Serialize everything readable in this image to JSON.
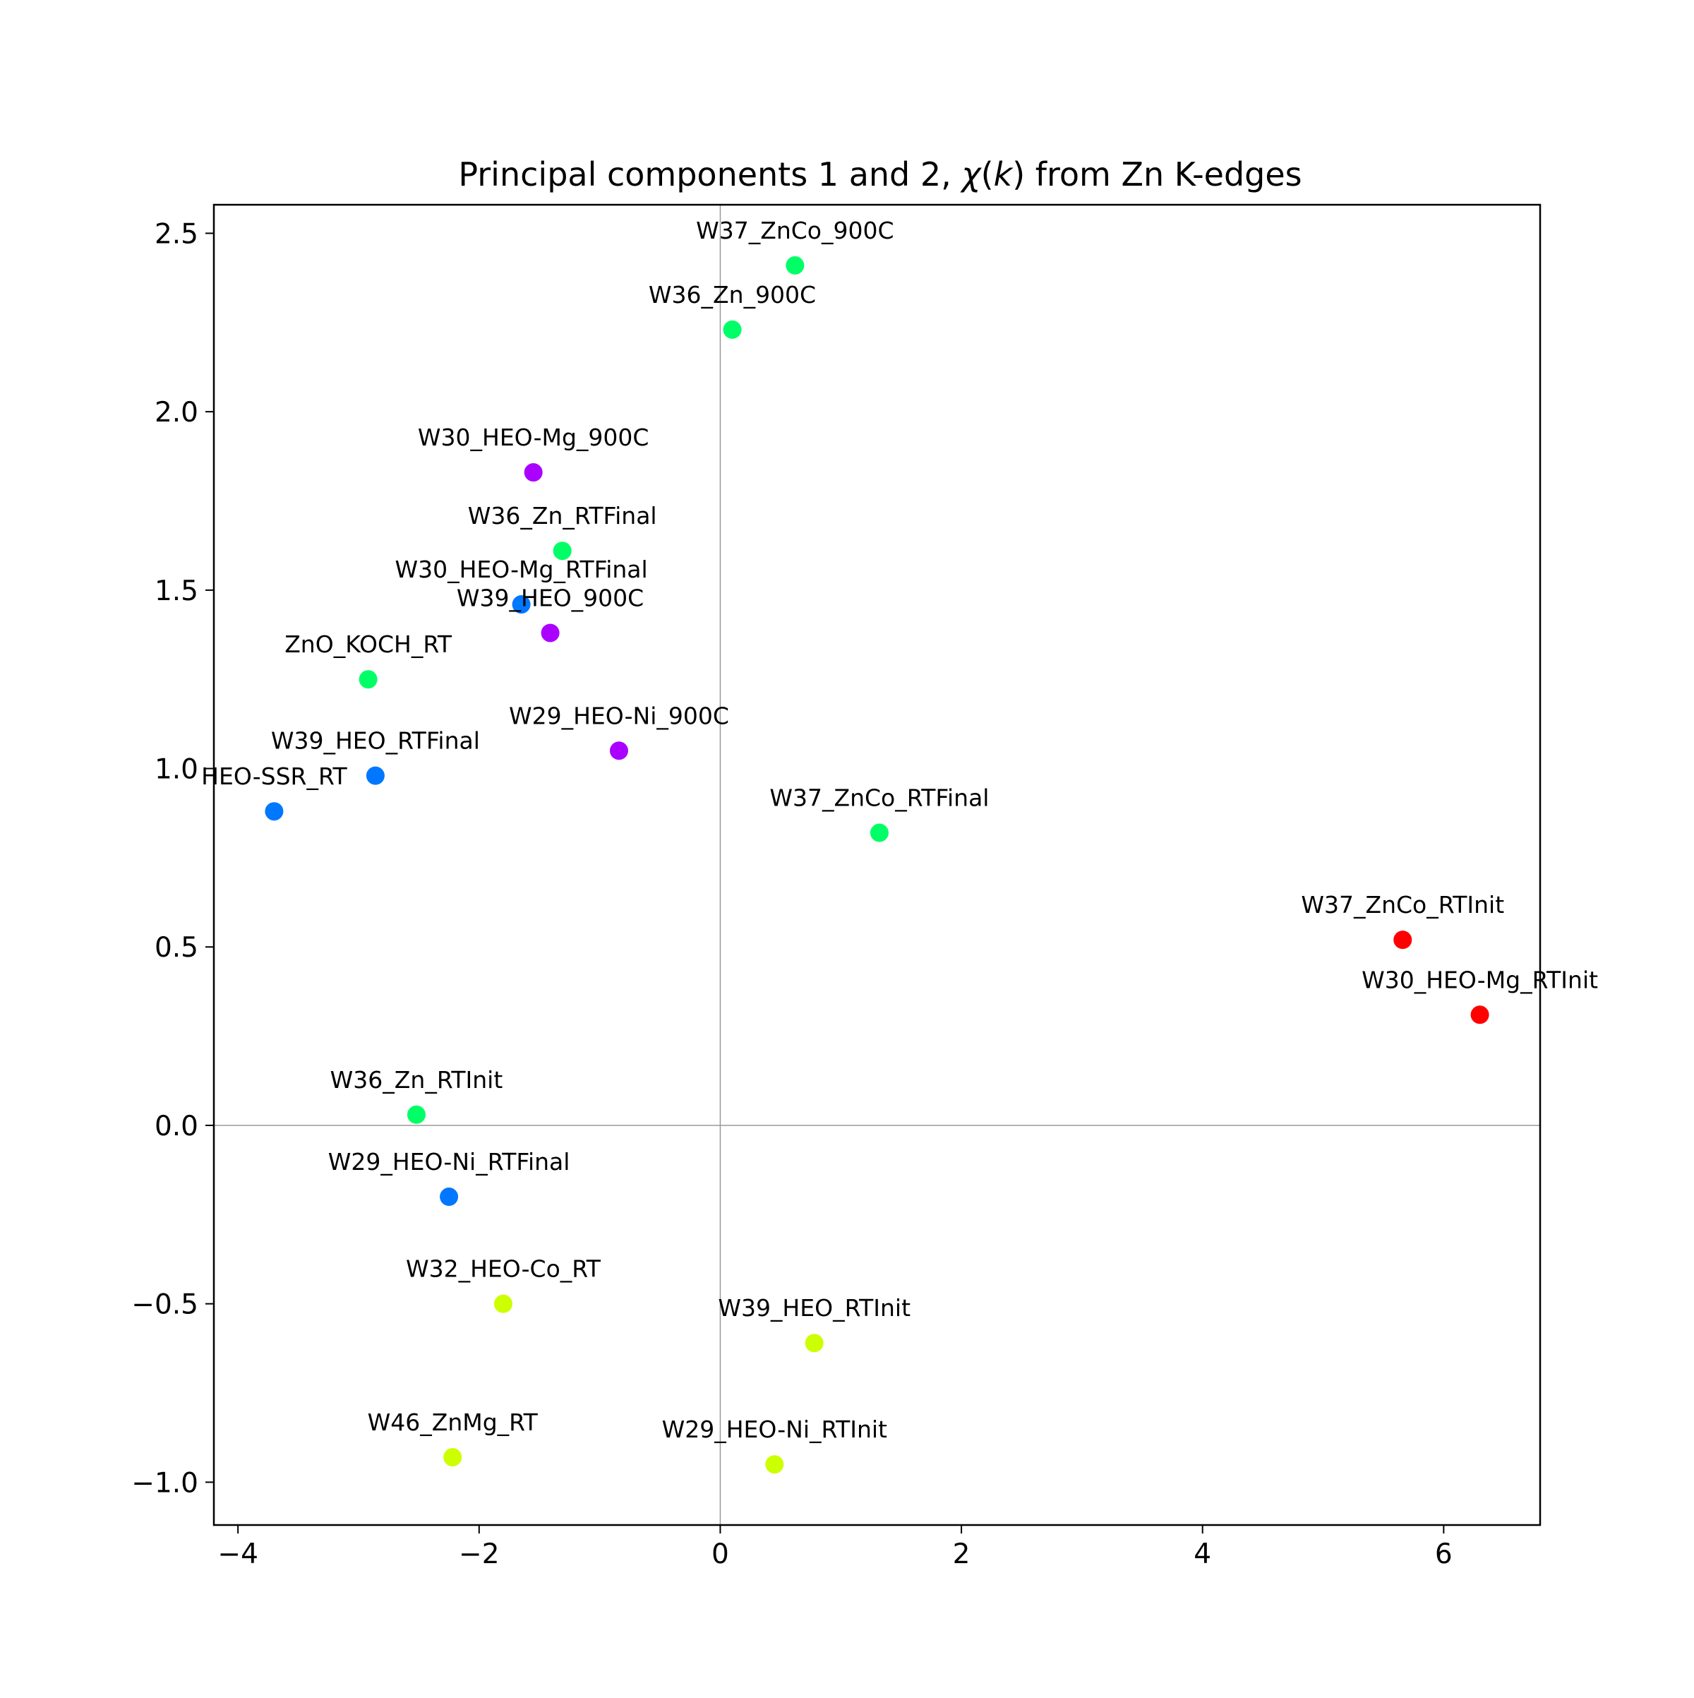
{
  "chart_data": {
    "type": "scatter",
    "title": "Principal components 1 and 2, χ(k) from Zn K-edges",
    "title_parts": {
      "before": "Principal components 1 and 2, ",
      "chi": "χ",
      "open": "(",
      "k": "k",
      "after": ") from Zn K-edges"
    },
    "xlabel": "",
    "ylabel": "",
    "xlim": [
      -4.2,
      6.8
    ],
    "ylim": [
      -1.12,
      2.58
    ],
    "x_ticks": [
      {
        "value": -4,
        "label": "−4"
      },
      {
        "value": -2,
        "label": "−2"
      },
      {
        "value": 0,
        "label": "0"
      },
      {
        "value": 2,
        "label": "2"
      },
      {
        "value": 4,
        "label": "4"
      },
      {
        "value": 6,
        "label": "6"
      }
    ],
    "y_ticks": [
      {
        "value": -1.0,
        "label": "−1.0"
      },
      {
        "value": -0.5,
        "label": "−0.5"
      },
      {
        "value": 0.0,
        "label": "0.0"
      },
      {
        "value": 0.5,
        "label": "0.5"
      },
      {
        "value": 1.0,
        "label": "1.0"
      },
      {
        "value": 1.5,
        "label": "1.5"
      },
      {
        "value": 2.0,
        "label": "2.0"
      },
      {
        "value": 2.5,
        "label": "2.5"
      }
    ],
    "grid": false,
    "reference_lines": {
      "x": 0,
      "y": 0,
      "color": "#999999"
    },
    "points": [
      {
        "label": "W37_ZnCo_900C",
        "x": 0.62,
        "y": 2.41,
        "color": "#00ff66"
      },
      {
        "label": "W36_Zn_900C",
        "x": 0.1,
        "y": 2.23,
        "color": "#00ff66"
      },
      {
        "label": "W30_HEO-Mg_900C",
        "x": -1.55,
        "y": 1.83,
        "color": "#aa00ff"
      },
      {
        "label": "W36_Zn_RTFinal",
        "x": -1.31,
        "y": 1.61,
        "color": "#00ff66"
      },
      {
        "label": "W30_HEO-Mg_RTFinal",
        "x": -1.65,
        "y": 1.46,
        "color": "#0077ff"
      },
      {
        "label": "W39_HEO_900C",
        "x": -1.41,
        "y": 1.38,
        "color": "#aa00ff"
      },
      {
        "label": "ZnO_KOCH_RT",
        "x": -2.92,
        "y": 1.25,
        "color": "#00ff66"
      },
      {
        "label": "W29_HEO-Ni_900C",
        "x": -0.84,
        "y": 1.05,
        "color": "#aa00ff"
      },
      {
        "label": "W39_HEO_RTFinal",
        "x": -2.86,
        "y": 0.98,
        "color": "#0077ff"
      },
      {
        "label": "HEO-SSR_RT",
        "x": -3.7,
        "y": 0.88,
        "color": "#0077ff"
      },
      {
        "label": "W37_ZnCo_RTFinal",
        "x": 1.32,
        "y": 0.82,
        "color": "#00ff66"
      },
      {
        "label": "W37_ZnCo_RTInit",
        "x": 5.66,
        "y": 0.52,
        "color": "#ff0000"
      },
      {
        "label": "W30_HEO-Mg_RTInit",
        "x": 6.3,
        "y": 0.31,
        "color": "#ff0000"
      },
      {
        "label": "W36_Zn_RTInit",
        "x": -2.52,
        "y": 0.03,
        "color": "#00ff66"
      },
      {
        "label": "W29_HEO-Ni_RTFinal",
        "x": -2.25,
        "y": -0.2,
        "color": "#0077ff"
      },
      {
        "label": "W32_HEO-Co_RT",
        "x": -1.8,
        "y": -0.5,
        "color": "#ccff00"
      },
      {
        "label": "W39_HEO_RTInit",
        "x": 0.78,
        "y": -0.61,
        "color": "#ccff00"
      },
      {
        "label": "W46_ZnMg_RT",
        "x": -2.22,
        "y": -0.93,
        "color": "#ccff00"
      },
      {
        "label": "W29_HEO-Ni_RTInit",
        "x": 0.45,
        "y": -0.95,
        "color": "#ccff00"
      }
    ]
  }
}
